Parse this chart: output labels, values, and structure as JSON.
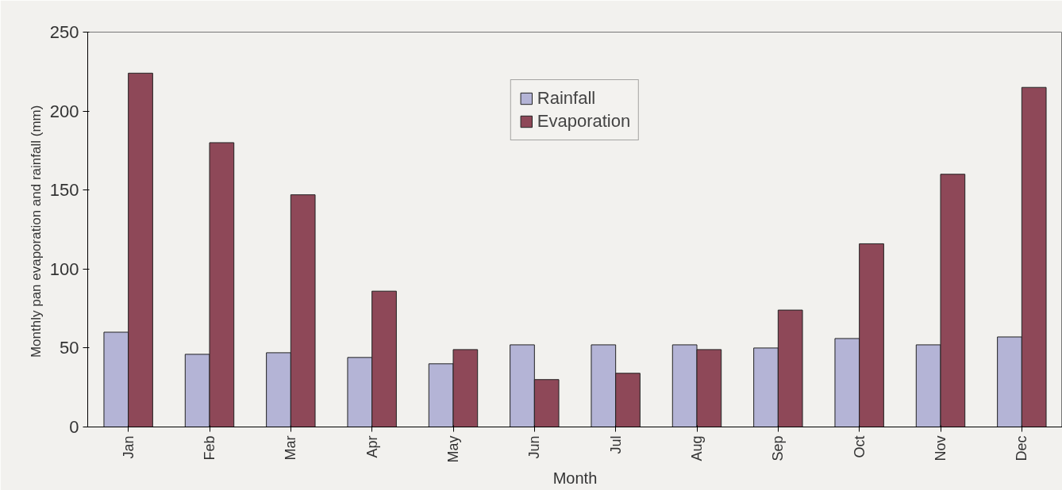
{
  "chart_data": {
    "type": "bar",
    "xlabel": "Month",
    "ylabel": "Monthly  pan evaporation and rainfall (mm)",
    "categories": [
      "Jan",
      "Feb",
      "Mar",
      "Apr",
      "May",
      "Jun",
      "Jul",
      "Aug",
      "Sep",
      "Oct",
      "Nov",
      "Dec"
    ],
    "series": [
      {
        "name": "Rainfall",
        "color": "#b4b4d6",
        "values": [
          60,
          46,
          47,
          44,
          40,
          52,
          52,
          52,
          50,
          56,
          52,
          57
        ]
      },
      {
        "name": "Evaporation",
        "color": "#8e4858",
        "values": [
          224,
          180,
          147,
          86,
          49,
          30,
          34,
          49,
          74,
          116,
          160,
          215
        ]
      }
    ],
    "ylim": [
      0,
      250
    ],
    "yticks": [
      0,
      50,
      100,
      150,
      200,
      250
    ],
    "grid": false,
    "legend": "top"
  }
}
